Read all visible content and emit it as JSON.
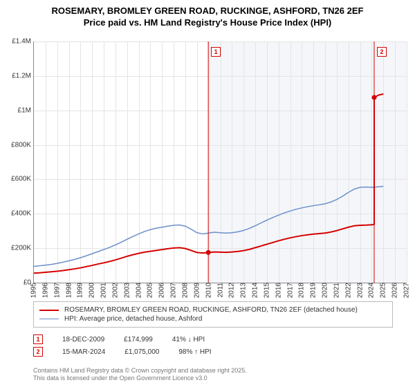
{
  "title_line1": "ROSEMARY, BROMLEY GREEN ROAD, RUCKINGE, ASHFORD, TN26 2EF",
  "title_line2": "Price paid vs. HM Land Registry's House Price Index (HPI)",
  "chart": {
    "type": "line",
    "background_color": "#ffffff",
    "shaded_bg_color": "#f4f6fa",
    "shaded_start_year": 2009.97,
    "grid_color": "#e4e4e4",
    "axis_color": "#888888",
    "y": {
      "min": 0,
      "max": 1400000,
      "ticks": [
        0,
        200000,
        400000,
        600000,
        800000,
        1000000,
        1200000,
        1400000
      ],
      "tick_labels": [
        "£0",
        "£200K",
        "£400K",
        "£600K",
        "£800K",
        "£1M",
        "£1.2M",
        "£1.4M"
      ],
      "label_fontsize": 10
    },
    "x": {
      "min": 1995,
      "max": 2027,
      "ticks": [
        1995,
        1996,
        1997,
        1998,
        1999,
        2000,
        2001,
        2002,
        2003,
        2004,
        2005,
        2006,
        2007,
        2008,
        2009,
        2010,
        2011,
        2012,
        2013,
        2014,
        2015,
        2016,
        2017,
        2018,
        2019,
        2020,
        2021,
        2022,
        2023,
        2024,
        2025,
        2026,
        2027
      ],
      "tick_labels": [
        "1995",
        "1996",
        "1997",
        "1998",
        "1999",
        "2000",
        "2001",
        "2002",
        "2003",
        "2004",
        "2005",
        "2006",
        "2007",
        "2008",
        "2009",
        "2010",
        "2011",
        "2012",
        "2013",
        "2014",
        "2015",
        "2016",
        "2017",
        "2018",
        "2019",
        "2020",
        "2021",
        "2022",
        "2023",
        "2024",
        "2025",
        "2026",
        "2027"
      ],
      "label_fontsize": 10
    },
    "series": [
      {
        "name": "price_paid",
        "label": "ROSEMARY, BROMLEY GREEN ROAD, RUCKINGE, ASHFORD, TN26 2EF (detached house)",
        "color": "#d60000",
        "linewidth": 2,
        "points": [
          [
            1995.0,
            55000
          ],
          [
            1995.5,
            57000
          ],
          [
            1996.0,
            60000
          ],
          [
            1996.5,
            63000
          ],
          [
            1997.0,
            66000
          ],
          [
            1997.5,
            70000
          ],
          [
            1998.0,
            75000
          ],
          [
            1998.5,
            80000
          ],
          [
            1999.0,
            86000
          ],
          [
            1999.5,
            93000
          ],
          [
            2000.0,
            100000
          ],
          [
            2000.5,
            108000
          ],
          [
            2001.0,
            115000
          ],
          [
            2001.5,
            123000
          ],
          [
            2002.0,
            132000
          ],
          [
            2002.5,
            142000
          ],
          [
            2003.0,
            153000
          ],
          [
            2003.5,
            162000
          ],
          [
            2004.0,
            170000
          ],
          [
            2004.5,
            177000
          ],
          [
            2005.0,
            182000
          ],
          [
            2005.5,
            187000
          ],
          [
            2006.0,
            192000
          ],
          [
            2006.5,
            197000
          ],
          [
            2007.0,
            201000
          ],
          [
            2007.5,
            203000
          ],
          [
            2008.0,
            198000
          ],
          [
            2008.5,
            187000
          ],
          [
            2009.0,
            175000
          ],
          [
            2009.5,
            172000
          ],
          [
            2009.97,
            174999
          ],
          [
            2010.5,
            178000
          ],
          [
            2011.0,
            177000
          ],
          [
            2011.5,
            176000
          ],
          [
            2012.0,
            178000
          ],
          [
            2012.5,
            181000
          ],
          [
            2013.0,
            186000
          ],
          [
            2013.5,
            193000
          ],
          [
            2014.0,
            203000
          ],
          [
            2014.5,
            213000
          ],
          [
            2015.0,
            223000
          ],
          [
            2015.5,
            233000
          ],
          [
            2016.0,
            243000
          ],
          [
            2016.5,
            252000
          ],
          [
            2017.0,
            260000
          ],
          [
            2017.5,
            267000
          ],
          [
            2018.0,
            273000
          ],
          [
            2018.5,
            278000
          ],
          [
            2019.0,
            282000
          ],
          [
            2019.5,
            285000
          ],
          [
            2020.0,
            288000
          ],
          [
            2020.5,
            294000
          ],
          [
            2021.0,
            302000
          ],
          [
            2021.5,
            312000
          ],
          [
            2022.0,
            322000
          ],
          [
            2022.5,
            330000
          ],
          [
            2023.0,
            333000
          ],
          [
            2023.5,
            334000
          ],
          [
            2024.0,
            336000
          ],
          [
            2024.21,
            338000
          ],
          [
            2024.21,
            1075000
          ],
          [
            2024.6,
            1089000
          ],
          [
            2025.0,
            1095000
          ]
        ]
      },
      {
        "name": "hpi",
        "label": "HPI: Average price, detached house, Ashford",
        "color": "#6b8fc9",
        "linewidth": 1.5,
        "points": [
          [
            1995.0,
            95000
          ],
          [
            1995.5,
            98000
          ],
          [
            1996.0,
            102000
          ],
          [
            1996.5,
            106000
          ],
          [
            1997.0,
            112000
          ],
          [
            1997.5,
            119000
          ],
          [
            1998.0,
            127000
          ],
          [
            1998.5,
            135000
          ],
          [
            1999.0,
            145000
          ],
          [
            1999.5,
            156000
          ],
          [
            2000.0,
            168000
          ],
          [
            2000.5,
            180000
          ],
          [
            2001.0,
            192000
          ],
          [
            2001.5,
            205000
          ],
          [
            2002.0,
            219000
          ],
          [
            2002.5,
            235000
          ],
          [
            2003.0,
            252000
          ],
          [
            2003.5,
            268000
          ],
          [
            2004.0,
            283000
          ],
          [
            2004.5,
            297000
          ],
          [
            2005.0,
            308000
          ],
          [
            2005.5,
            316000
          ],
          [
            2006.0,
            322000
          ],
          [
            2006.5,
            328000
          ],
          [
            2007.0,
            333000
          ],
          [
            2007.5,
            335000
          ],
          [
            2008.0,
            328000
          ],
          [
            2008.5,
            310000
          ],
          [
            2009.0,
            290000
          ],
          [
            2009.5,
            283000
          ],
          [
            2010.0,
            288000
          ],
          [
            2010.5,
            293000
          ],
          [
            2011.0,
            290000
          ],
          [
            2011.5,
            288000
          ],
          [
            2012.0,
            290000
          ],
          [
            2012.5,
            295000
          ],
          [
            2013.0,
            303000
          ],
          [
            2013.5,
            315000
          ],
          [
            2014.0,
            330000
          ],
          [
            2014.5,
            347000
          ],
          [
            2015.0,
            363000
          ],
          [
            2015.5,
            378000
          ],
          [
            2016.0,
            392000
          ],
          [
            2016.5,
            405000
          ],
          [
            2017.0,
            416000
          ],
          [
            2017.5,
            426000
          ],
          [
            2018.0,
            434000
          ],
          [
            2018.5,
            441000
          ],
          [
            2019.0,
            447000
          ],
          [
            2019.5,
            452000
          ],
          [
            2020.0,
            458000
          ],
          [
            2020.5,
            468000
          ],
          [
            2021.0,
            483000
          ],
          [
            2021.5,
            502000
          ],
          [
            2022.0,
            524000
          ],
          [
            2022.5,
            543000
          ],
          [
            2023.0,
            553000
          ],
          [
            2023.5,
            555000
          ],
          [
            2024.0,
            553000
          ],
          [
            2024.5,
            556000
          ],
          [
            2025.0,
            559000
          ]
        ]
      }
    ],
    "markers": [
      {
        "num": "1",
        "year": 2009.97,
        "value": 174999,
        "color": "#d60000",
        "date_label": "18-DEC-2009",
        "price_label": "£174,999",
        "delta_label": "41% ↓ HPI"
      },
      {
        "num": "2",
        "year": 2024.21,
        "value": 1075000,
        "color": "#d60000",
        "date_label": "15-MAR-2024",
        "price_label": "£1,075,000",
        "delta_label": "98% ↑ HPI"
      }
    ],
    "dots": [
      {
        "year": 2009.97,
        "value": 174999,
        "color": "#d60000"
      },
      {
        "year": 2024.21,
        "value": 1075000,
        "color": "#d60000"
      }
    ]
  },
  "footer_line1": "Contains HM Land Registry data © Crown copyright and database right 2025.",
  "footer_line2": "This data is licensed under the Open Government Licence v3.0"
}
